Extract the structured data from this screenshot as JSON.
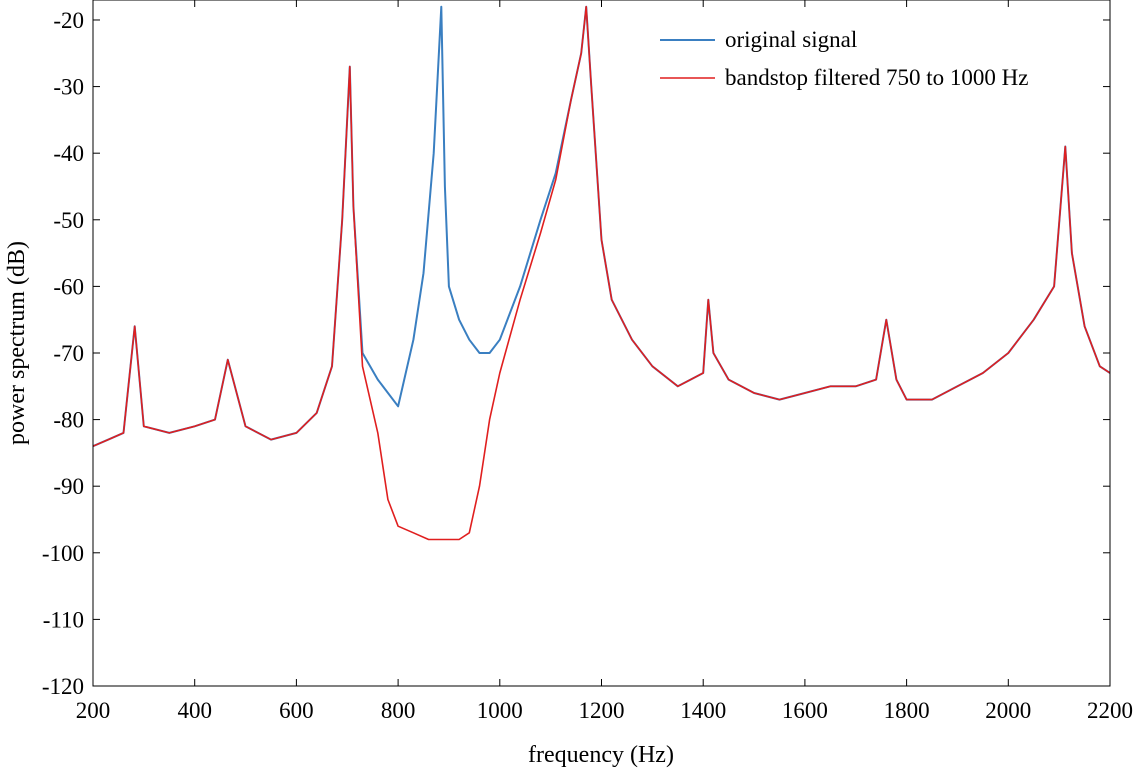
{
  "chart_data": {
    "type": "line",
    "title": "",
    "xlabel": "frequency (Hz)",
    "ylabel": "power spectrum (dB)",
    "xlim": [
      200,
      2200
    ],
    "ylim": [
      -120,
      -17
    ],
    "xticks": [
      200,
      400,
      600,
      800,
      1000,
      1200,
      1400,
      1600,
      1800,
      2000,
      2200
    ],
    "xtick_labels": [
      "200",
      "400",
      "600",
      "800",
      "1000",
      "1200",
      "1400",
      "1600",
      "1800",
      "2000",
      "2200"
    ],
    "yticks": [
      -120,
      -110,
      -100,
      -90,
      -80,
      -70,
      -60,
      -50,
      -40,
      -30,
      -20
    ],
    "ytick_labels": [
      "-120",
      "-110",
      "-100",
      "-90",
      "-80",
      "-70",
      "-60",
      "-50",
      "-40",
      "-30",
      "-20"
    ],
    "grid": false,
    "legend_position": "top-right",
    "series": [
      {
        "name": "original signal",
        "color": "#3a7fc1",
        "x": [
          200,
          230,
          260,
          282,
          300,
          350,
          400,
          440,
          465,
          500,
          550,
          600,
          640,
          670,
          690,
          705,
          712,
          730,
          760,
          800,
          830,
          850,
          870,
          885,
          892,
          900,
          920,
          940,
          960,
          980,
          1000,
          1040,
          1080,
          1110,
          1140,
          1160,
          1170,
          1180,
          1200,
          1220,
          1260,
          1300,
          1350,
          1400,
          1410,
          1420,
          1450,
          1500,
          1550,
          1600,
          1650,
          1700,
          1740,
          1760,
          1780,
          1800,
          1850,
          1900,
          1950,
          2000,
          2050,
          2090,
          2112,
          2125,
          2150,
          2180,
          2200
        ],
        "y": [
          -84,
          -83,
          -82,
          -66,
          -81,
          -82,
          -81,
          -80,
          -71,
          -81,
          -83,
          -82,
          -79,
          -72,
          -50,
          -27,
          -48,
          -70,
          -74,
          -78,
          -68,
          -58,
          -40,
          -18,
          -45,
          -60,
          -65,
          -68,
          -70,
          -70,
          -68,
          -60,
          -50,
          -43,
          -32,
          -25,
          -18,
          -30,
          -53,
          -62,
          -68,
          -72,
          -75,
          -73,
          -62,
          -70,
          -74,
          -76,
          -77,
          -76,
          -75,
          -75,
          -74,
          -65,
          -74,
          -77,
          -77,
          -75,
          -73,
          -70,
          -65,
          -60,
          -39,
          -55,
          -66,
          -72,
          -73
        ]
      },
      {
        "name": "bandstop filtered 750 to 1000 Hz",
        "color": "#e01f1f",
        "x": [
          200,
          230,
          260,
          282,
          300,
          350,
          400,
          440,
          465,
          500,
          550,
          600,
          640,
          670,
          690,
          705,
          712,
          730,
          760,
          780,
          800,
          830,
          860,
          890,
          920,
          940,
          960,
          980,
          1000,
          1040,
          1080,
          1110,
          1140,
          1160,
          1170,
          1180,
          1200,
          1220,
          1260,
          1300,
          1350,
          1400,
          1410,
          1420,
          1450,
          1500,
          1550,
          1600,
          1650,
          1700,
          1740,
          1760,
          1780,
          1800,
          1850,
          1900,
          1950,
          2000,
          2050,
          2090,
          2112,
          2125,
          2150,
          2180,
          2200
        ],
        "y": [
          -84,
          -83,
          -82,
          -66,
          -81,
          -82,
          -81,
          -80,
          -71,
          -81,
          -83,
          -82,
          -79,
          -72,
          -50,
          -27,
          -48,
          -72,
          -82,
          -92,
          -96,
          -97,
          -98,
          -98,
          -98,
          -97,
          -90,
          -80,
          -73,
          -62,
          -52,
          -44,
          -32,
          -25,
          -18,
          -30,
          -53,
          -62,
          -68,
          -72,
          -75,
          -73,
          -62,
          -70,
          -74,
          -76,
          -77,
          -76,
          -75,
          -75,
          -74,
          -65,
          -74,
          -77,
          -77,
          -75,
          -73,
          -70,
          -65,
          -60,
          -39,
          -55,
          -66,
          -72,
          -73
        ]
      }
    ]
  }
}
